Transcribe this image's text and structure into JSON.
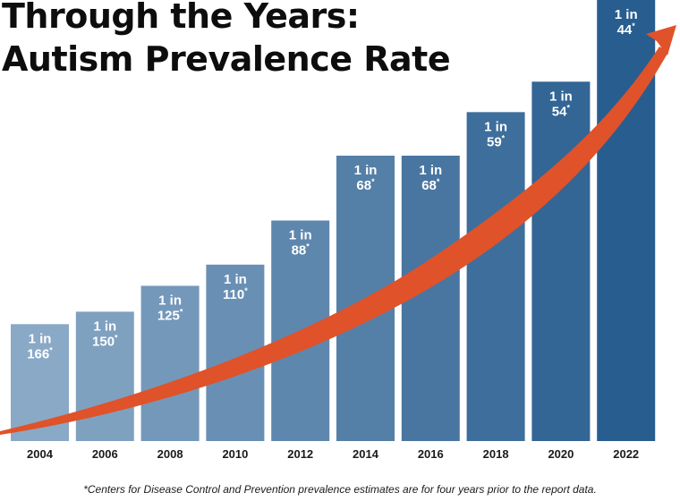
{
  "chart_data": {
    "type": "bar",
    "title_lines": [
      "Through the Years:",
      "Autism Prevalence Rate"
    ],
    "categories": [
      "2004",
      "2006",
      "2008",
      "2010",
      "2012",
      "2014",
      "2016",
      "2018",
      "2020",
      "2022"
    ],
    "values": [
      166,
      150,
      125,
      110,
      88,
      68,
      68,
      59,
      54,
      44
    ],
    "bar_labels": [
      [
        "1 in",
        "166"
      ],
      [
        "1 in",
        "150"
      ],
      [
        "1 in",
        "125"
      ],
      [
        "1 in",
        "110"
      ],
      [
        "1 in",
        "88"
      ],
      [
        "1 in",
        "68"
      ],
      [
        "1 in",
        "68"
      ],
      [
        "1 in",
        "59"
      ],
      [
        "1 in",
        "54"
      ],
      [
        "1 in",
        "44"
      ]
    ],
    "label_asterisk": "*",
    "footnote": "*Centers for Disease Control and Prevention prevalence estimates are for four years prior to the report data.",
    "colors": {
      "bar_start": "#8aa9c6",
      "bar_end": "#285d8f",
      "arrow": "#e0522a",
      "bar_label": "#ffffff"
    }
  }
}
